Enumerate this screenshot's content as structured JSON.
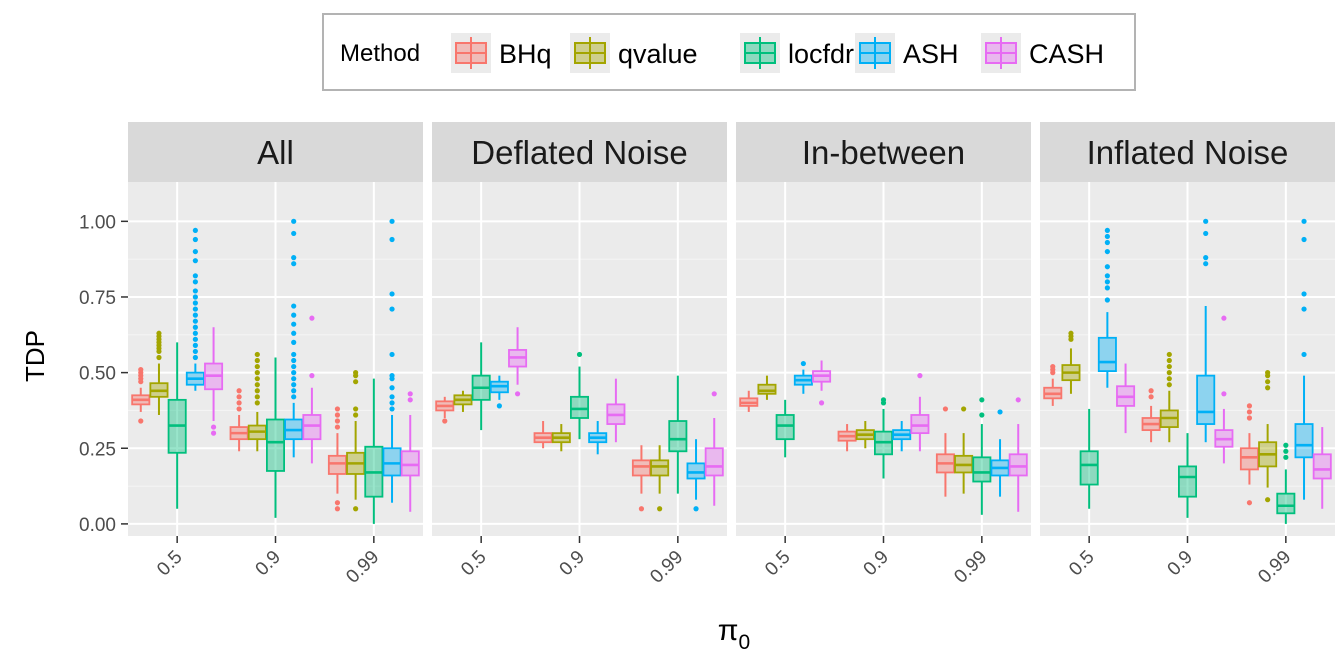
{
  "chart_data": {
    "type": "boxplot",
    "ylabel": "TDP",
    "xlabel": "π",
    "xlabel_subscript": "0",
    "legend": {
      "title": "Method",
      "position": "top",
      "entries": [
        "BHq",
        "qvalue",
        "locfdr",
        "ASH",
        "CASH"
      ]
    },
    "colors": {
      "BHq": "#F8766D",
      "qvalue": "#A3A500",
      "locfdr": "#00BF7D",
      "ASH": "#00B0F6",
      "CASH": "#E76BF3"
    },
    "ylim": [
      -0.04,
      1.13
    ],
    "yticks": [
      0.0,
      0.25,
      0.5,
      0.75,
      1.0
    ],
    "ytick_labels": [
      "0.00",
      "0.25",
      "0.50",
      "0.75",
      "1.00"
    ],
    "categories": [
      "0.5",
      "0.9",
      "0.99"
    ],
    "panels": [
      {
        "title": "All",
        "groups": [
          {
            "BHq": {
              "q1": 0.395,
              "med": 0.41,
              "q3": 0.425,
              "lo": 0.37,
              "hi": 0.45,
              "out": [
                0.34,
                0.47,
                0.48,
                0.49,
                0.5,
                0.51
              ]
            },
            "qvalue": {
              "q1": 0.42,
              "med": 0.44,
              "q3": 0.465,
              "lo": 0.36,
              "hi": 0.53,
              "out": [
                0.55,
                0.57,
                0.58,
                0.59,
                0.6,
                0.61,
                0.62,
                0.63
              ]
            },
            "locfdr": {
              "q1": 0.235,
              "med": 0.325,
              "q3": 0.41,
              "lo": 0.05,
              "hi": 0.6,
              "out": []
            },
            "ASH": {
              "q1": 0.46,
              "med": 0.48,
              "q3": 0.5,
              "lo": 0.44,
              "hi": 0.53,
              "out": [
                0.55,
                0.57,
                0.59,
                0.61,
                0.63,
                0.65,
                0.67,
                0.69,
                0.71,
                0.73,
                0.75,
                0.77,
                0.8,
                0.82,
                0.87,
                0.9,
                0.94,
                0.97
              ]
            },
            "CASH": {
              "q1": 0.445,
              "med": 0.49,
              "q3": 0.53,
              "lo": 0.34,
              "hi": 0.65,
              "out": [
                0.3,
                0.32
              ]
            }
          },
          {
            "BHq": {
              "q1": 0.28,
              "med": 0.3,
              "q3": 0.32,
              "lo": 0.24,
              "hi": 0.36,
              "out": [
                0.38,
                0.4,
                0.42,
                0.44
              ]
            },
            "qvalue": {
              "q1": 0.28,
              "med": 0.305,
              "q3": 0.325,
              "lo": 0.24,
              "hi": 0.37,
              "out": [
                0.4,
                0.42,
                0.44,
                0.46,
                0.48,
                0.5,
                0.52,
                0.54,
                0.56
              ]
            },
            "locfdr": {
              "q1": 0.175,
              "med": 0.27,
              "q3": 0.345,
              "lo": 0.02,
              "hi": 0.55,
              "out": []
            },
            "ASH": {
              "q1": 0.28,
              "med": 0.31,
              "q3": 0.345,
              "lo": 0.22,
              "hi": 0.4,
              "out": [
                0.42,
                0.44,
                0.46,
                0.48,
                0.5,
                0.52,
                0.54,
                0.56,
                0.6,
                0.63,
                0.66,
                0.69,
                0.72,
                0.86,
                0.88,
                0.96,
                1.0
              ]
            },
            "CASH": {
              "q1": 0.28,
              "med": 0.325,
              "q3": 0.36,
              "lo": 0.2,
              "hi": 0.45,
              "out": [
                0.49,
                0.68
              ]
            }
          },
          {
            "BHq": {
              "q1": 0.165,
              "med": 0.2,
              "q3": 0.225,
              "lo": 0.1,
              "hi": 0.3,
              "out": [
                0.05,
                0.07,
                0.32,
                0.34,
                0.36,
                0.38
              ]
            },
            "qvalue": {
              "q1": 0.165,
              "med": 0.2,
              "q3": 0.235,
              "lo": 0.08,
              "hi": 0.34,
              "out": [
                0.05,
                0.36,
                0.38,
                0.47,
                0.49,
                0.5
              ]
            },
            "locfdr": {
              "q1": 0.09,
              "med": 0.17,
              "q3": 0.255,
              "lo": 0.0,
              "hi": 0.48,
              "out": []
            },
            "ASH": {
              "q1": 0.16,
              "med": 0.2,
              "q3": 0.25,
              "lo": 0.07,
              "hi": 0.36,
              "out": [
                0.38,
                0.4,
                0.42,
                0.45,
                0.48,
                0.49,
                0.56,
                0.71,
                0.76,
                0.94,
                1.0
              ]
            },
            "CASH": {
              "q1": 0.16,
              "med": 0.195,
              "q3": 0.24,
              "lo": 0.04,
              "hi": 0.36,
              "out": [
                0.41,
                0.43
              ]
            }
          }
        ]
      },
      {
        "title": "Deflated Noise",
        "groups": [
          {
            "BHq": {
              "q1": 0.375,
              "med": 0.39,
              "q3": 0.405,
              "lo": 0.35,
              "hi": 0.42,
              "out": [
                0.34
              ]
            },
            "qvalue": {
              "q1": 0.395,
              "med": 0.41,
              "q3": 0.425,
              "lo": 0.37,
              "hi": 0.44,
              "out": []
            },
            "locfdr": {
              "q1": 0.41,
              "med": 0.45,
              "q3": 0.49,
              "lo": 0.31,
              "hi": 0.6,
              "out": []
            },
            "ASH": {
              "q1": 0.435,
              "med": 0.455,
              "q3": 0.47,
              "lo": 0.41,
              "hi": 0.49,
              "out": [
                0.39
              ]
            },
            "CASH": {
              "q1": 0.52,
              "med": 0.55,
              "q3": 0.575,
              "lo": 0.46,
              "hi": 0.65,
              "out": [
                0.43
              ]
            }
          },
          {
            "BHq": {
              "q1": 0.27,
              "med": 0.285,
              "q3": 0.3,
              "lo": 0.25,
              "hi": 0.34,
              "out": []
            },
            "qvalue": {
              "q1": 0.27,
              "med": 0.285,
              "q3": 0.3,
              "lo": 0.24,
              "hi": 0.33,
              "out": []
            },
            "locfdr": {
              "q1": 0.35,
              "med": 0.38,
              "q3": 0.42,
              "lo": 0.28,
              "hi": 0.52,
              "out": [
                0.56
              ]
            },
            "ASH": {
              "q1": 0.27,
              "med": 0.285,
              "q3": 0.3,
              "lo": 0.23,
              "hi": 0.34,
              "out": []
            },
            "CASH": {
              "q1": 0.33,
              "med": 0.36,
              "q3": 0.395,
              "lo": 0.27,
              "hi": 0.48,
              "out": []
            }
          },
          {
            "BHq": {
              "q1": 0.16,
              "med": 0.19,
              "q3": 0.21,
              "lo": 0.1,
              "hi": 0.26,
              "out": [
                0.05
              ]
            },
            "qvalue": {
              "q1": 0.16,
              "med": 0.19,
              "q3": 0.21,
              "lo": 0.1,
              "hi": 0.26,
              "out": [
                0.05
              ]
            },
            "locfdr": {
              "q1": 0.24,
              "med": 0.28,
              "q3": 0.34,
              "lo": 0.1,
              "hi": 0.49,
              "out": []
            },
            "ASH": {
              "q1": 0.15,
              "med": 0.17,
              "q3": 0.2,
              "lo": 0.08,
              "hi": 0.28,
              "out": [
                0.05
              ]
            },
            "CASH": {
              "q1": 0.16,
              "med": 0.19,
              "q3": 0.25,
              "lo": 0.06,
              "hi": 0.35,
              "out": [
                0.43
              ]
            }
          }
        ]
      },
      {
        "title": "In-between",
        "groups": [
          {
            "BHq": {
              "q1": 0.39,
              "med": 0.4,
              "q3": 0.415,
              "lo": 0.37,
              "hi": 0.44,
              "out": []
            },
            "qvalue": {
              "q1": 0.43,
              "med": 0.44,
              "q3": 0.46,
              "lo": 0.41,
              "hi": 0.49,
              "out": []
            },
            "locfdr": {
              "q1": 0.28,
              "med": 0.325,
              "q3": 0.36,
              "lo": 0.22,
              "hi": 0.41,
              "out": []
            },
            "ASH": {
              "q1": 0.46,
              "med": 0.475,
              "q3": 0.49,
              "lo": 0.43,
              "hi": 0.51,
              "out": [
                0.53
              ]
            },
            "CASH": {
              "q1": 0.47,
              "med": 0.49,
              "q3": 0.505,
              "lo": 0.44,
              "hi": 0.54,
              "out": [
                0.4
              ]
            }
          },
          {
            "BHq": {
              "q1": 0.275,
              "med": 0.29,
              "q3": 0.305,
              "lo": 0.24,
              "hi": 0.33,
              "out": []
            },
            "qvalue": {
              "q1": 0.28,
              "med": 0.295,
              "q3": 0.31,
              "lo": 0.25,
              "hi": 0.34,
              "out": []
            },
            "locfdr": {
              "q1": 0.23,
              "med": 0.27,
              "q3": 0.305,
              "lo": 0.15,
              "hi": 0.38,
              "out": [
                0.4,
                0.41
              ]
            },
            "ASH": {
              "q1": 0.28,
              "med": 0.295,
              "q3": 0.31,
              "lo": 0.24,
              "hi": 0.34,
              "out": []
            },
            "CASH": {
              "q1": 0.3,
              "med": 0.325,
              "q3": 0.36,
              "lo": 0.24,
              "hi": 0.42,
              "out": [
                0.49
              ]
            }
          },
          {
            "BHq": {
              "q1": 0.17,
              "med": 0.2,
              "q3": 0.23,
              "lo": 0.09,
              "hi": 0.3,
              "out": [
                0.38
              ]
            },
            "qvalue": {
              "q1": 0.17,
              "med": 0.195,
              "q3": 0.225,
              "lo": 0.1,
              "hi": 0.3,
              "out": [
                0.38
              ]
            },
            "locfdr": {
              "q1": 0.14,
              "med": 0.17,
              "q3": 0.22,
              "lo": 0.03,
              "hi": 0.33,
              "out": [
                0.36,
                0.41
              ]
            },
            "ASH": {
              "q1": 0.16,
              "med": 0.185,
              "q3": 0.21,
              "lo": 0.09,
              "hi": 0.28,
              "out": [
                0.37
              ]
            },
            "CASH": {
              "q1": 0.16,
              "med": 0.19,
              "q3": 0.23,
              "lo": 0.04,
              "hi": 0.33,
              "out": [
                0.41
              ]
            }
          }
        ]
      },
      {
        "title": "Inflated Noise",
        "groups": [
          {
            "BHq": {
              "q1": 0.415,
              "med": 0.43,
              "q3": 0.45,
              "lo": 0.39,
              "hi": 0.48,
              "out": [
                0.5,
                0.51,
                0.52
              ]
            },
            "qvalue": {
              "q1": 0.475,
              "med": 0.5,
              "q3": 0.525,
              "lo": 0.43,
              "hi": 0.58,
              "out": [
                0.61,
                0.62,
                0.63
              ]
            },
            "locfdr": {
              "q1": 0.13,
              "med": 0.195,
              "q3": 0.24,
              "lo": 0.05,
              "hi": 0.38,
              "out": []
            },
            "ASH": {
              "q1": 0.505,
              "med": 0.535,
              "q3": 0.615,
              "lo": 0.45,
              "hi": 0.7,
              "out": [
                0.74,
                0.78,
                0.8,
                0.82,
                0.85,
                0.9,
                0.93,
                0.95,
                0.97
              ]
            },
            "CASH": {
              "q1": 0.39,
              "med": 0.42,
              "q3": 0.455,
              "lo": 0.3,
              "hi": 0.53,
              "out": []
            }
          },
          {
            "BHq": {
              "q1": 0.31,
              "med": 0.33,
              "q3": 0.35,
              "lo": 0.27,
              "hi": 0.39,
              "out": [
                0.42,
                0.44
              ]
            },
            "qvalue": {
              "q1": 0.32,
              "med": 0.35,
              "q3": 0.375,
              "lo": 0.27,
              "hi": 0.44,
              "out": [
                0.46,
                0.48,
                0.5,
                0.52,
                0.54,
                0.56
              ]
            },
            "locfdr": {
              "q1": 0.09,
              "med": 0.155,
              "q3": 0.19,
              "lo": 0.02,
              "hi": 0.3,
              "out": []
            },
            "ASH": {
              "q1": 0.33,
              "med": 0.37,
              "q3": 0.49,
              "lo": 0.27,
              "hi": 0.72,
              "out": [
                0.86,
                0.88,
                0.96,
                1.0
              ]
            },
            "CASH": {
              "q1": 0.255,
              "med": 0.28,
              "q3": 0.31,
              "lo": 0.2,
              "hi": 0.38,
              "out": [
                0.43,
                0.68
              ]
            }
          },
          {
            "BHq": {
              "q1": 0.18,
              "med": 0.22,
              "q3": 0.25,
              "lo": 0.13,
              "hi": 0.3,
              "out": [
                0.07,
                0.35,
                0.37,
                0.39
              ]
            },
            "qvalue": {
              "q1": 0.19,
              "med": 0.23,
              "q3": 0.27,
              "lo": 0.12,
              "hi": 0.33,
              "out": [
                0.08,
                0.45,
                0.47,
                0.49,
                0.5
              ]
            },
            "locfdr": {
              "q1": 0.035,
              "med": 0.06,
              "q3": 0.1,
              "lo": 0.0,
              "hi": 0.18,
              "out": [
                0.22,
                0.24,
                0.26
              ]
            },
            "ASH": {
              "q1": 0.22,
              "med": 0.26,
              "q3": 0.33,
              "lo": 0.08,
              "hi": 0.49,
              "out": [
                0.56,
                0.71,
                0.76,
                0.94,
                1.0
              ]
            },
            "CASH": {
              "q1": 0.15,
              "med": 0.18,
              "q3": 0.23,
              "lo": 0.05,
              "hi": 0.32,
              "out": []
            }
          }
        ]
      }
    ]
  }
}
